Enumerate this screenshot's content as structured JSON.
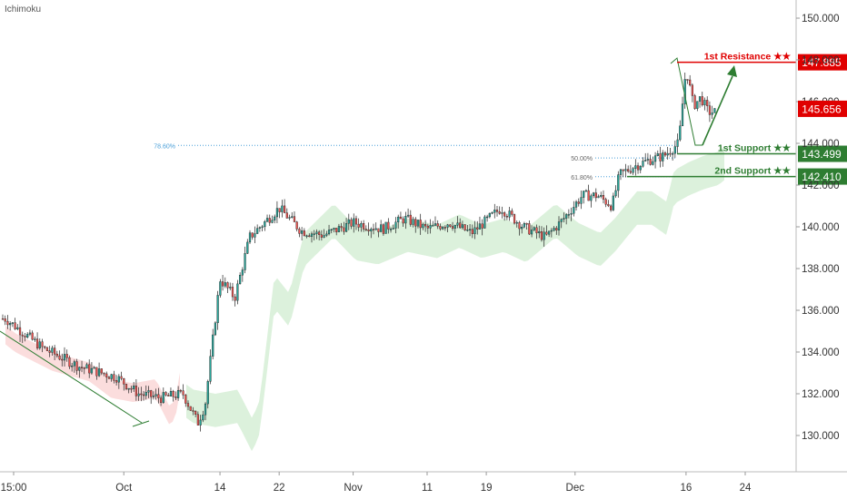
{
  "indicator_label": "Ichimoku",
  "colors": {
    "up": "#26a69a",
    "down": "#ef5350",
    "candle_outline": "#333333",
    "resistance": "#e00000",
    "support": "#2e7d32",
    "fib": "#4a9fd8",
    "arrow": "#2e7d32",
    "cloud_bull": "#d8f0d8",
    "cloud_bear": "#fbd9d9",
    "axis_text": "#333333",
    "grid": "#e8e8e8"
  },
  "chart_data": {
    "type": "candlestick",
    "title": "",
    "ylim": [
      128.0,
      151.0
    ],
    "y_ticks": [
      "130.000",
      "132.000",
      "134.000",
      "136.000",
      "138.000",
      "140.000",
      "142.000",
      "144.000",
      "146.000",
      "148.000",
      "150.000"
    ],
    "x_ticks": [
      {
        "label": "15:00",
        "date": "2019-09-15"
      },
      {
        "label": "Oct",
        "date": "2019-10-01"
      },
      {
        "label": "14",
        "date": "2019-10-14"
      },
      {
        "label": "22",
        "date": "2019-10-22"
      },
      {
        "label": "Nov",
        "date": "2019-11-01"
      },
      {
        "label": "11",
        "date": "2019-11-11"
      },
      {
        "label": "19",
        "date": "2019-11-19"
      },
      {
        "label": "Dec",
        "date": "2019-12-01"
      },
      {
        "label": "16",
        "date": "2019-12-16"
      },
      {
        "label": "24",
        "date": "2019-12-24"
      }
    ],
    "price_path": [
      {
        "date": "2019-09-15",
        "price": 135.6
      },
      {
        "date": "2019-09-20",
        "price": 134.2
      },
      {
        "date": "2019-09-25",
        "price": 133.3
      },
      {
        "date": "2019-09-30",
        "price": 132.8
      },
      {
        "date": "2019-10-03",
        "price": 132.0
      },
      {
        "date": "2019-10-06",
        "price": 131.8
      },
      {
        "date": "2019-10-09",
        "price": 132.0
      },
      {
        "date": "2019-10-11",
        "price": 130.6
      },
      {
        "date": "2019-10-12",
        "price": 131.5
      },
      {
        "date": "2019-10-13",
        "price": 134.5
      },
      {
        "date": "2019-10-14",
        "price": 137.5
      },
      {
        "date": "2019-10-16",
        "price": 136.6
      },
      {
        "date": "2019-10-18",
        "price": 139.5
      },
      {
        "date": "2019-10-20",
        "price": 140.2
      },
      {
        "date": "2019-10-22",
        "price": 140.9
      },
      {
        "date": "2019-10-25",
        "price": 139.8
      },
      {
        "date": "2019-10-28",
        "price": 139.6
      },
      {
        "date": "2019-11-01",
        "price": 140.2
      },
      {
        "date": "2019-11-05",
        "price": 139.9
      },
      {
        "date": "2019-11-08",
        "price": 140.4
      },
      {
        "date": "2019-11-11",
        "price": 139.9
      },
      {
        "date": "2019-11-14",
        "price": 140.2
      },
      {
        "date": "2019-11-17",
        "price": 139.7
      },
      {
        "date": "2019-11-19",
        "price": 140.3
      },
      {
        "date": "2019-11-21",
        "price": 140.9
      },
      {
        "date": "2019-11-24",
        "price": 140.0
      },
      {
        "date": "2019-11-27",
        "price": 139.5
      },
      {
        "date": "2019-11-29",
        "price": 140.2
      },
      {
        "date": "2019-12-02",
        "price": 141.5
      },
      {
        "date": "2019-12-04",
        "price": 141.5
      },
      {
        "date": "2019-12-06",
        "price": 141.0
      },
      {
        "date": "2019-12-07",
        "price": 142.5
      },
      {
        "date": "2019-12-09",
        "price": 142.9
      },
      {
        "date": "2019-12-11",
        "price": 143.2
      },
      {
        "date": "2019-12-13",
        "price": 143.4
      },
      {
        "date": "2019-12-15",
        "price": 144.0
      },
      {
        "date": "2019-12-16",
        "price": 147.6
      },
      {
        "date": "2019-12-17",
        "price": 145.8
      },
      {
        "date": "2019-12-18",
        "price": 146.2
      },
      {
        "date": "2019-12-19",
        "price": 145.5
      }
    ],
    "horizontal_levels": [
      {
        "label": "1st Resistance ★★",
        "value": 147.885,
        "price_label": "147.885",
        "kind": "resistance"
      },
      {
        "label": "1st Support ★★",
        "value": 143.499,
        "price_label": "143.499",
        "kind": "support"
      },
      {
        "label": "2nd Support ★★",
        "value": 142.41,
        "price_label": "142.410",
        "kind": "support"
      }
    ],
    "current_price": {
      "value": 145.656,
      "price_label": "145.656"
    },
    "fib_levels": [
      {
        "label": "78.60%",
        "value": 143.9
      },
      {
        "label": "50.00%",
        "value": 143.3
      },
      {
        "label": "61.80%",
        "value": 142.4
      }
    ],
    "annotations": [
      "downtrend line from mid-Sep to Oct 11 low",
      "projected drop to 1st Support then rise to 1st Resistance"
    ],
    "legend": "none",
    "grid": false
  }
}
